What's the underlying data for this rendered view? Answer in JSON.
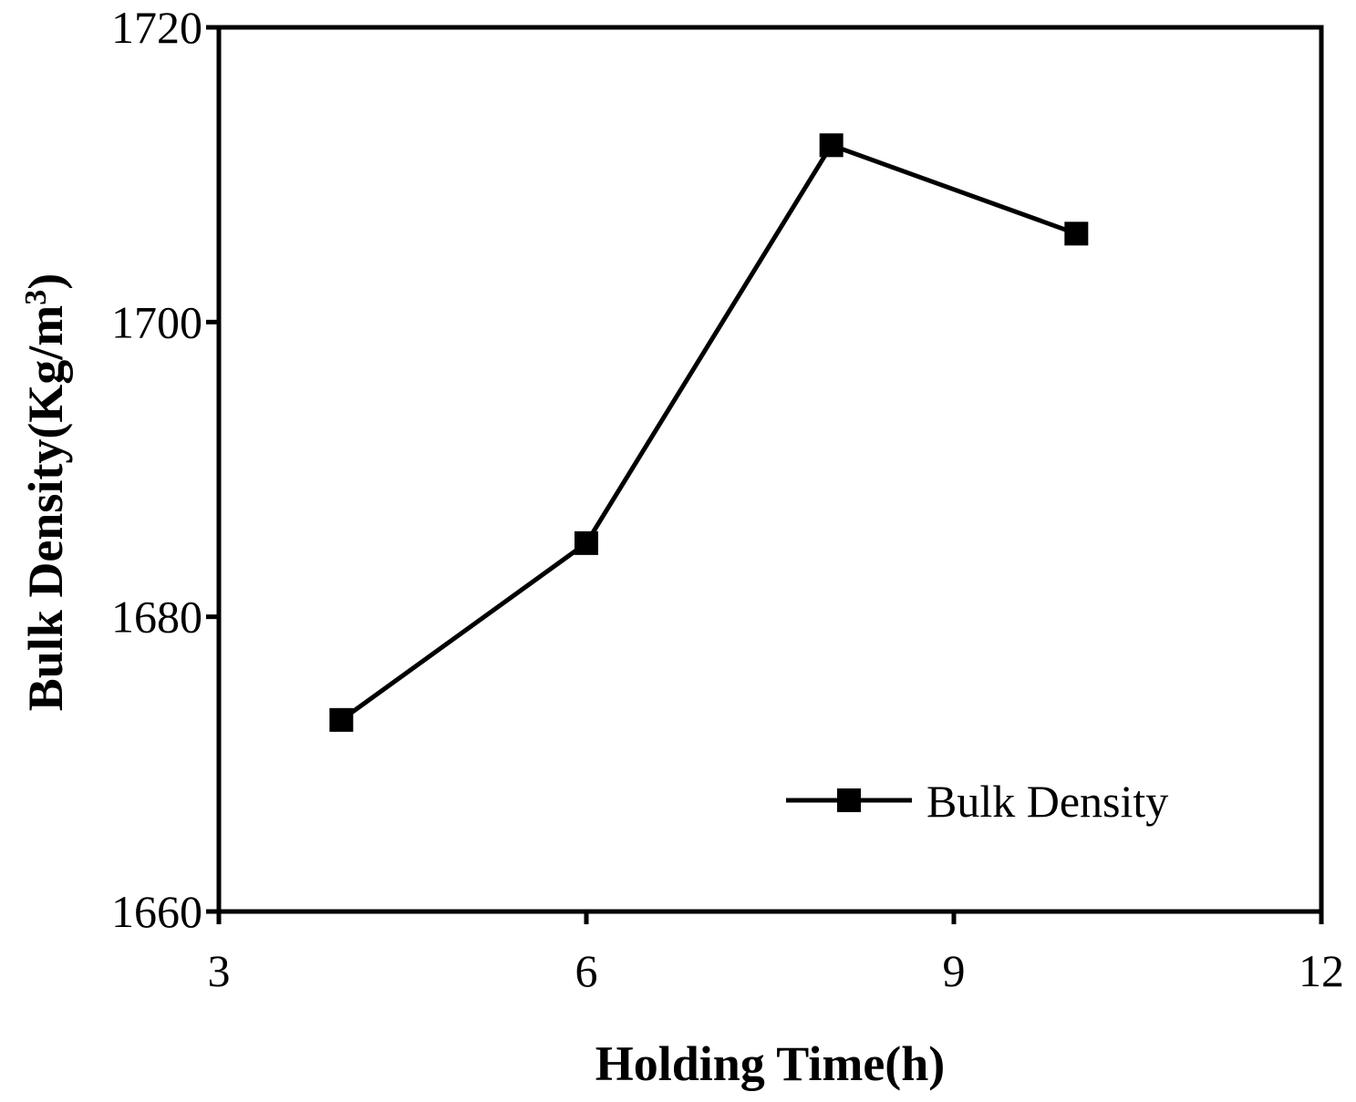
{
  "chart_data": {
    "type": "line",
    "title": "",
    "xlabel": "Holding Time(h)",
    "ylabel_main": "Bulk Density(Kg/m",
    "ylabel_sup": "3",
    "ylabel_close": ")",
    "xlim": [
      3,
      12
    ],
    "ylim": [
      1660,
      1720
    ],
    "xticks": [
      3,
      6,
      9,
      12
    ],
    "yticks": [
      1660,
      1680,
      1700,
      1720
    ],
    "grid": false,
    "legend_position": "bottom-right",
    "series": [
      {
        "name": "Bulk Density",
        "marker": "square",
        "color": "#000000",
        "x": [
          4,
          6,
          8,
          10
        ],
        "y": [
          1673,
          1685,
          1712,
          1706
        ]
      }
    ]
  }
}
